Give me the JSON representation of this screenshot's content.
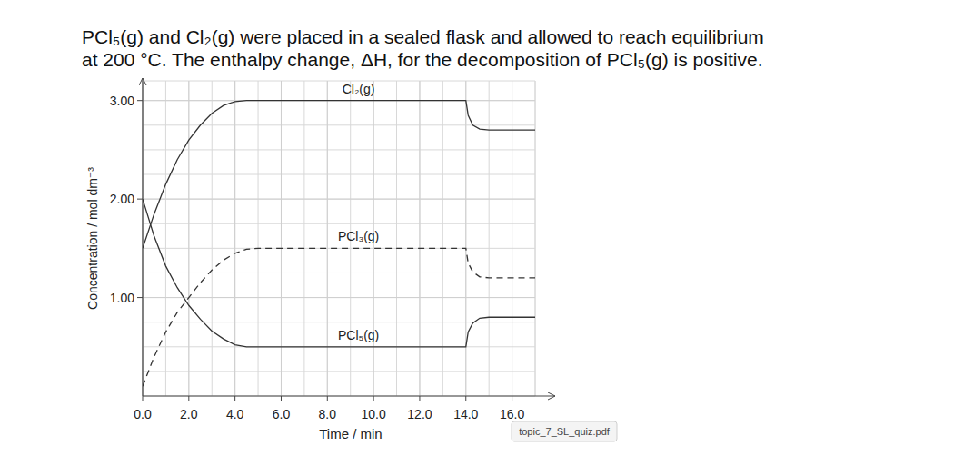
{
  "chart_data": {
    "type": "line",
    "title": [
      "PCl₅(g) and Cl₂(g) were placed in a sealed flask and allowed to reach equilibrium",
      "at 200 °C. The enthalpy change, ΔH, for the decomposition of PCl₅(g) is positive."
    ],
    "x_label": "Time / min",
    "y_label": "Concentration / mol dm⁻³",
    "annotations": [
      "topic_7_SL_quiz.pdf"
    ],
    "x": [
      0,
      0.5,
      1,
      1.5,
      2,
      2.5,
      3,
      3.5,
      4,
      4.5,
      5,
      14,
      14.1,
      14.3,
      14.6,
      15,
      17
    ],
    "series": [
      {
        "name": "Cl₂(g)",
        "color": "#333333",
        "line_style": "solid",
        "values": [
          1.5,
          1.85,
          2.15,
          2.4,
          2.6,
          2.75,
          2.87,
          2.95,
          2.99,
          3.0,
          3.0,
          3.0,
          2.85,
          2.75,
          2.71,
          2.7,
          2.7
        ]
      },
      {
        "name": "PCl₃(g)",
        "color": "#333333",
        "line_style": "dashed",
        "values": [
          0.1,
          0.4,
          0.65,
          0.85,
          1.0,
          1.15,
          1.28,
          1.38,
          1.45,
          1.49,
          1.5,
          1.5,
          1.35,
          1.26,
          1.21,
          1.2,
          1.2
        ]
      },
      {
        "name": "PCl₅(g)",
        "color": "#333333",
        "line_style": "solid",
        "values": [
          2.0,
          1.62,
          1.32,
          1.1,
          0.92,
          0.78,
          0.66,
          0.58,
          0.52,
          0.5,
          0.5,
          0.5,
          0.65,
          0.74,
          0.79,
          0.8,
          0.8
        ]
      }
    ],
    "xlim": [
      0,
      17
    ],
    "ylim": [
      0,
      3.2
    ],
    "xticks": [
      {
        "value": 0,
        "label": "0.0"
      },
      {
        "value": 2,
        "label": "2.0"
      },
      {
        "value": 4,
        "label": "4.0"
      },
      {
        "value": 6,
        "label": "6.0"
      },
      {
        "value": 8,
        "label": "8.0"
      },
      {
        "value": 10,
        "label": "10.0"
      },
      {
        "value": 12,
        "label": "12.0"
      },
      {
        "value": 14,
        "label": "14.0"
      },
      {
        "value": 16,
        "label": "16.0"
      }
    ],
    "yticks": [
      {
        "value": 1,
        "label": "1.00"
      },
      {
        "value": 2,
        "label": "2.00"
      },
      {
        "value": 3,
        "label": "3.00"
      }
    ],
    "grid": true
  }
}
